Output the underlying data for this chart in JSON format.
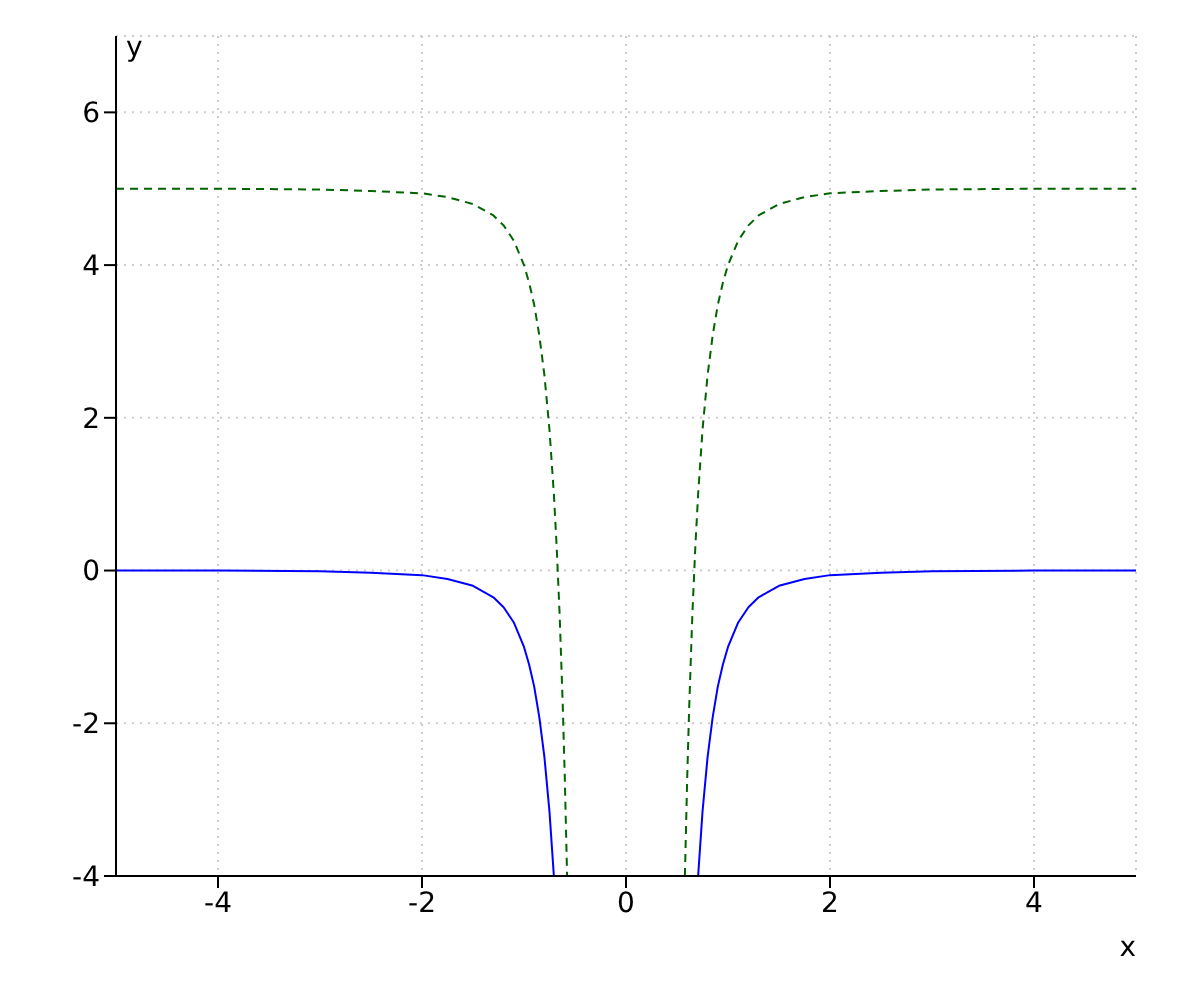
{
  "chart_data": {
    "type": "line",
    "xlabel": "x",
    "ylabel": "y",
    "xlim": [
      -5,
      5
    ],
    "ylim": [
      -4,
      7
    ],
    "xticks": [
      -4,
      -2,
      0,
      2,
      4
    ],
    "yticks": [
      -4,
      -2,
      0,
      2,
      4,
      6
    ],
    "grid": true,
    "legend": false,
    "marker": "none",
    "series": [
      {
        "color": "#0000ff",
        "line_style": "solid",
        "x": [
          -5,
          -4,
          -3,
          -2.5,
          -2,
          -1.75,
          -1.5,
          -1.3,
          -1.2,
          -1.1,
          -1,
          -0.95,
          -0.9,
          -0.85,
          -0.8,
          -0.75,
          -0.7071,
          0,
          0.7071,
          0.75,
          0.8,
          0.85,
          0.9,
          0.95,
          1,
          1.1,
          1.2,
          1.3,
          1.5,
          1.75,
          2,
          2.5,
          3,
          4,
          5
        ],
        "values": [
          0,
          0,
          -0.01,
          -0.03,
          -0.06,
          -0.11,
          -0.2,
          -0.35,
          -0.48,
          -0.68,
          -1,
          -1.23,
          -1.52,
          -1.92,
          -2.44,
          -3.16,
          -4,
          null,
          -4,
          -3.16,
          -2.44,
          -1.92,
          -1.52,
          -1.23,
          -1,
          -0.68,
          -0.48,
          -0.35,
          -0.2,
          -0.11,
          -0.06,
          -0.03,
          -0.01,
          0,
          0
        ]
      },
      {
        "color": "#006400",
        "line_style": "dashed",
        "x": [
          -5,
          -4,
          -3,
          -2.5,
          -2,
          -1.75,
          -1.5,
          -1.3,
          -1.2,
          -1.1,
          -1,
          -0.95,
          -0.9,
          -0.85,
          -0.8,
          -0.75,
          -0.7071,
          -0.68,
          -0.65,
          -0.62,
          -0.6,
          -0.5774,
          0,
          0.5774,
          0.6,
          0.62,
          0.65,
          0.68,
          0.7071,
          0.75,
          0.8,
          0.85,
          0.9,
          0.95,
          1,
          1.1,
          1.2,
          1.3,
          1.5,
          1.75,
          2,
          2.5,
          3,
          4,
          5
        ],
        "values": [
          5,
          5,
          4.99,
          4.97,
          4.94,
          4.89,
          4.8,
          4.65,
          4.52,
          4.32,
          4,
          3.77,
          3.48,
          3.08,
          2.56,
          1.84,
          1,
          0.32,
          -0.6,
          -1.77,
          -2.72,
          -4,
          null,
          -4,
          -2.72,
          -1.77,
          -0.6,
          0.32,
          1,
          1.84,
          2.56,
          3.08,
          3.48,
          3.77,
          4,
          4.32,
          4.52,
          4.65,
          4.8,
          4.89,
          4.94,
          4.97,
          4.99,
          5,
          5
        ]
      }
    ]
  }
}
